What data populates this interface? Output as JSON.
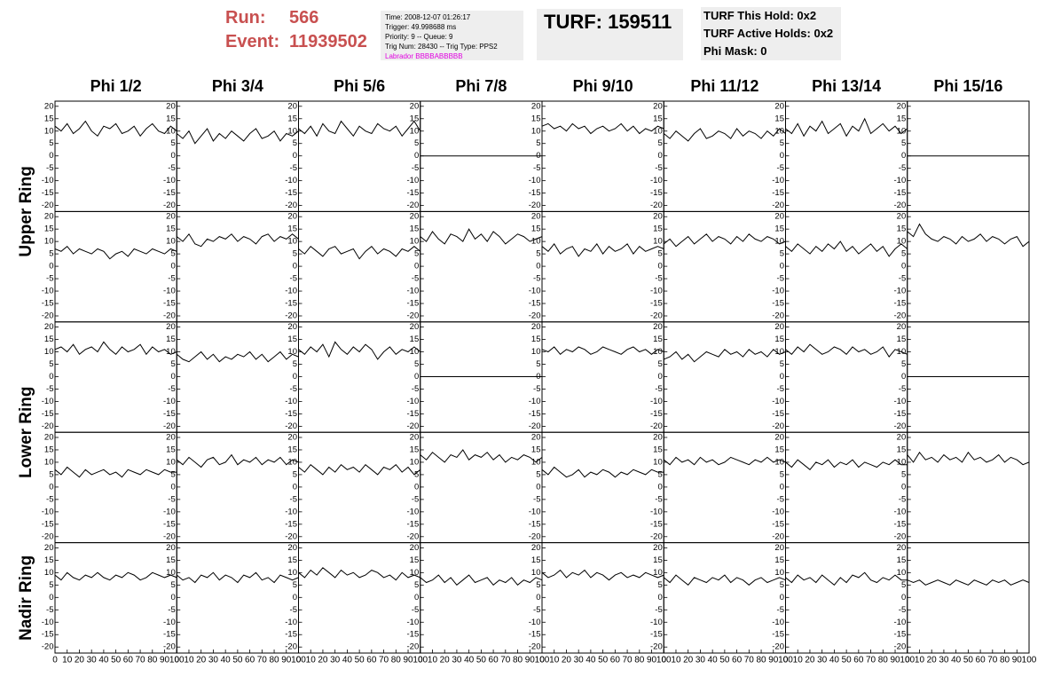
{
  "header": {
    "run_label": "Run:",
    "run": "566",
    "event_label": "Event:",
    "event": "11939502",
    "info": [
      "Time: 2008-12-07 01:26:17",
      "Trigger: 49.998688 ms",
      "Priority: 9 -- Queue: 9",
      "Trig Num: 28430 -- Trig Type: PPS2"
    ],
    "labrador": "Labrador BBBBABBBBB",
    "turf": "TURF: 159511",
    "turf_info": [
      "TURF This Hold: 0x2",
      "TURF Active Holds: 0x2",
      "Phi Mask: 0"
    ]
  },
  "chart_data": {
    "type": "line",
    "color": "#000000",
    "columns": [
      "Phi 1/2",
      "Phi 3/4",
      "Phi 5/6",
      "Phi 7/8",
      "Phi 9/10",
      "Phi 11/12",
      "Phi 13/14",
      "Phi 15/16"
    ],
    "ring_labels": [
      "Upper Ring",
      "Lower Ring",
      "Nadir Ring"
    ],
    "xlim": [
      0,
      100
    ],
    "xticks": [
      0,
      10,
      20,
      30,
      40,
      50,
      60,
      70,
      80,
      90,
      100
    ],
    "ylim": [
      -21,
      21
    ],
    "yticks": [
      -20,
      -15,
      -10,
      -5,
      0,
      5,
      10,
      15,
      20
    ],
    "x": [
      0,
      5,
      10,
      15,
      20,
      25,
      30,
      35,
      40,
      45,
      50,
      55,
      60,
      65,
      70,
      75,
      80,
      85,
      90,
      95,
      100
    ],
    "panels": [
      [
        [
          12,
          10,
          13,
          9,
          11,
          14,
          10,
          8,
          12,
          11,
          13,
          9,
          10,
          12,
          8,
          11,
          13,
          10,
          9,
          12,
          10
        ],
        [
          9,
          7,
          10,
          5,
          8,
          11,
          6,
          9,
          7,
          10,
          8,
          6,
          9,
          11,
          7,
          8,
          10,
          6,
          9,
          8,
          10
        ],
        [
          11,
          9,
          12,
          8,
          13,
          10,
          9,
          14,
          11,
          8,
          12,
          10,
          9,
          13,
          11,
          10,
          12,
          8,
          11,
          14,
          10
        ],
        [
          0,
          0,
          0,
          0,
          0,
          0,
          0,
          0,
          0,
          0,
          0,
          0,
          0,
          0,
          0,
          0,
          0,
          0,
          0,
          0,
          0
        ],
        [
          12,
          13,
          11,
          12,
          10,
          13,
          11,
          12,
          9,
          11,
          12,
          10,
          11,
          13,
          10,
          12,
          9,
          11,
          10,
          12,
          11
        ],
        [
          9,
          7,
          10,
          8,
          6,
          9,
          11,
          7,
          8,
          10,
          9,
          7,
          11,
          8,
          10,
          9,
          7,
          10,
          8,
          11,
          9
        ],
        [
          11,
          9,
          13,
          8,
          12,
          10,
          14,
          9,
          11,
          13,
          8,
          12,
          10,
          15,
          9,
          11,
          13,
          10,
          12,
          9,
          11
        ],
        [
          0,
          0,
          0,
          0,
          0,
          0,
          0,
          0,
          0,
          0,
          0,
          0,
          0,
          0,
          0,
          0,
          0,
          0,
          0,
          0,
          0
        ]
      ],
      [
        [
          7,
          6,
          8,
          5,
          7,
          6,
          5,
          7,
          6,
          3,
          5,
          6,
          4,
          7,
          6,
          5,
          7,
          6,
          5,
          7,
          6
        ],
        [
          12,
          10,
          13,
          9,
          8,
          11,
          10,
          12,
          11,
          13,
          10,
          12,
          11,
          9,
          12,
          13,
          10,
          12,
          11,
          13,
          11
        ],
        [
          7,
          5,
          8,
          6,
          4,
          7,
          8,
          5,
          6,
          7,
          3,
          6,
          8,
          5,
          7,
          6,
          4,
          7,
          6,
          8,
          6
        ],
        [
          12,
          10,
          14,
          11,
          9,
          13,
          12,
          10,
          15,
          11,
          13,
          10,
          14,
          12,
          9,
          11,
          13,
          12,
          10,
          11,
          12
        ],
        [
          8,
          6,
          9,
          5,
          7,
          8,
          4,
          7,
          6,
          9,
          5,
          8,
          6,
          7,
          9,
          5,
          8,
          6,
          7,
          8,
          7
        ],
        [
          9,
          11,
          8,
          10,
          12,
          9,
          11,
          13,
          10,
          12,
          11,
          9,
          12,
          10,
          13,
          11,
          10,
          12,
          11,
          9,
          10
        ],
        [
          8,
          6,
          9,
          7,
          5,
          8,
          6,
          9,
          7,
          10,
          6,
          8,
          5,
          7,
          9,
          6,
          8,
          4,
          7,
          9,
          7
        ],
        [
          14,
          12,
          17,
          13,
          11,
          10,
          12,
          11,
          9,
          12,
          10,
          11,
          13,
          10,
          12,
          11,
          9,
          11,
          12,
          8,
          10
        ]
      ],
      [
        [
          11,
          12,
          10,
          13,
          9,
          11,
          12,
          10,
          14,
          11,
          9,
          12,
          10,
          11,
          13,
          9,
          12,
          10,
          11,
          9,
          10
        ],
        [
          9,
          7,
          6,
          8,
          10,
          7,
          9,
          6,
          8,
          7,
          9,
          8,
          10,
          7,
          9,
          6,
          8,
          10,
          7,
          9,
          8
        ],
        [
          11,
          9,
          12,
          10,
          13,
          8,
          14,
          11,
          9,
          12,
          10,
          13,
          11,
          7,
          10,
          12,
          9,
          11,
          10,
          12,
          10
        ],
        [
          0,
          0,
          0,
          0,
          0,
          0,
          0,
          0,
          0,
          0,
          0,
          0,
          0,
          0,
          0,
          0,
          0,
          0,
          0,
          0,
          0
        ],
        [
          11,
          10,
          12,
          9,
          11,
          10,
          12,
          11,
          9,
          10,
          12,
          11,
          10,
          9,
          11,
          12,
          10,
          11,
          9,
          11,
          10
        ],
        [
          7,
          8,
          10,
          7,
          9,
          6,
          8,
          10,
          9,
          8,
          11,
          9,
          10,
          8,
          11,
          9,
          10,
          8,
          11,
          9,
          10
        ],
        [
          11,
          9,
          12,
          10,
          13,
          11,
          9,
          10,
          12,
          11,
          9,
          12,
          10,
          11,
          9,
          10,
          12,
          8,
          11,
          10,
          9
        ],
        [
          0,
          0,
          0,
          0,
          0,
          0,
          0,
          0,
          0,
          0,
          0,
          0,
          0,
          0,
          0,
          0,
          0,
          0,
          0,
          0,
          0
        ]
      ],
      [
        [
          7,
          5,
          8,
          6,
          4,
          7,
          5,
          6,
          7,
          5,
          6,
          4,
          7,
          6,
          5,
          7,
          6,
          5,
          7,
          6,
          6
        ],
        [
          11,
          9,
          12,
          10,
          8,
          11,
          12,
          9,
          10,
          13,
          9,
          11,
          10,
          12,
          9,
          11,
          10,
          12,
          9,
          11,
          10
        ],
        [
          8,
          6,
          9,
          7,
          5,
          8,
          6,
          9,
          7,
          8,
          6,
          9,
          7,
          5,
          8,
          7,
          9,
          6,
          8,
          5,
          7
        ],
        [
          13,
          11,
          14,
          12,
          10,
          13,
          12,
          15,
          11,
          13,
          12,
          14,
          11,
          13,
          10,
          12,
          11,
          13,
          12,
          10,
          12
        ],
        [
          7,
          5,
          8,
          6,
          4,
          5,
          7,
          4,
          6,
          5,
          7,
          6,
          4,
          6,
          5,
          7,
          6,
          5,
          7,
          6,
          6
        ],
        [
          11,
          9,
          12,
          10,
          11,
          9,
          12,
          10,
          11,
          9,
          10,
          12,
          11,
          10,
          9,
          11,
          10,
          12,
          10,
          11,
          10
        ],
        [
          10,
          8,
          11,
          9,
          7,
          10,
          9,
          11,
          8,
          10,
          9,
          11,
          8,
          10,
          9,
          8,
          10,
          9,
          11,
          9,
          9
        ],
        [
          13,
          10,
          14,
          11,
          12,
          10,
          13,
          11,
          12,
          10,
          14,
          11,
          12,
          10,
          11,
          13,
          10,
          12,
          11,
          9,
          10
        ]
      ],
      [
        [
          9,
          7,
          10,
          8,
          7,
          9,
          8,
          10,
          8,
          7,
          9,
          8,
          10,
          9,
          7,
          8,
          10,
          9,
          8,
          9,
          8
        ],
        [
          9,
          7,
          8,
          6,
          9,
          8,
          10,
          7,
          9,
          8,
          6,
          9,
          8,
          10,
          7,
          8,
          6,
          9,
          8,
          7,
          8
        ],
        [
          10,
          8,
          11,
          9,
          12,
          10,
          8,
          11,
          9,
          10,
          8,
          9,
          11,
          10,
          8,
          9,
          7,
          10,
          8,
          9,
          8
        ],
        [
          8,
          6,
          7,
          9,
          6,
          8,
          5,
          7,
          9,
          6,
          7,
          8,
          5,
          7,
          6,
          8,
          5,
          7,
          6,
          8,
          7
        ],
        [
          10,
          8,
          9,
          11,
          8,
          10,
          9,
          11,
          8,
          10,
          9,
          7,
          9,
          10,
          8,
          9,
          8,
          10,
          9,
          8,
          9
        ],
        [
          8,
          6,
          9,
          7,
          5,
          8,
          7,
          6,
          8,
          7,
          9,
          6,
          8,
          7,
          5,
          7,
          8,
          6,
          7,
          8,
          7
        ],
        [
          8,
          6,
          9,
          7,
          8,
          6,
          9,
          7,
          5,
          8,
          6,
          9,
          8,
          10,
          7,
          6,
          8,
          7,
          9,
          7,
          7
        ],
        [
          7,
          6,
          7,
          5,
          6,
          7,
          6,
          5,
          7,
          6,
          5,
          7,
          6,
          5,
          7,
          6,
          7,
          5,
          6,
          7,
          6
        ]
      ]
    ]
  }
}
